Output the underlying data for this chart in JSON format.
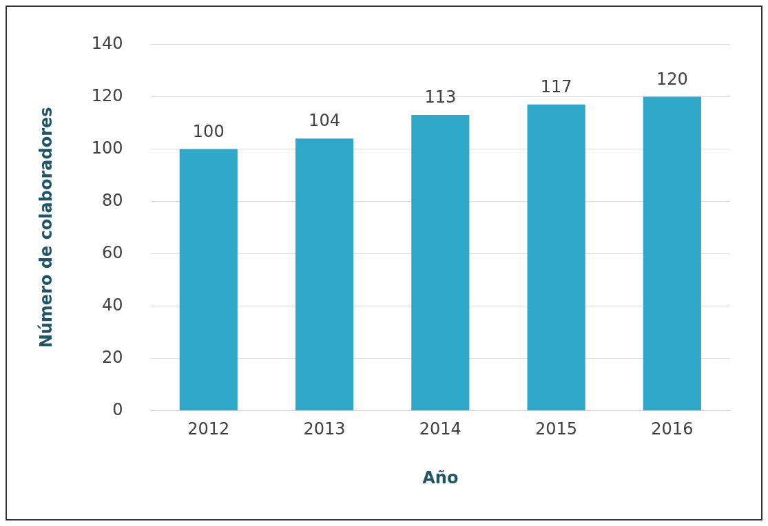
{
  "chart_data": {
    "type": "bar",
    "xlabel": "Año",
    "ylabel": "Número de colaboradores",
    "categories": [
      "2012",
      "2013",
      "2014",
      "2015",
      "2016"
    ],
    "values": [
      100,
      104,
      113,
      117,
      120
    ],
    "color": "#2ea7c9",
    "ylim": [
      0,
      140
    ],
    "yticks": [
      0,
      20,
      40,
      60,
      80,
      100,
      120,
      140
    ],
    "grid": "y",
    "data_labels": true
  }
}
